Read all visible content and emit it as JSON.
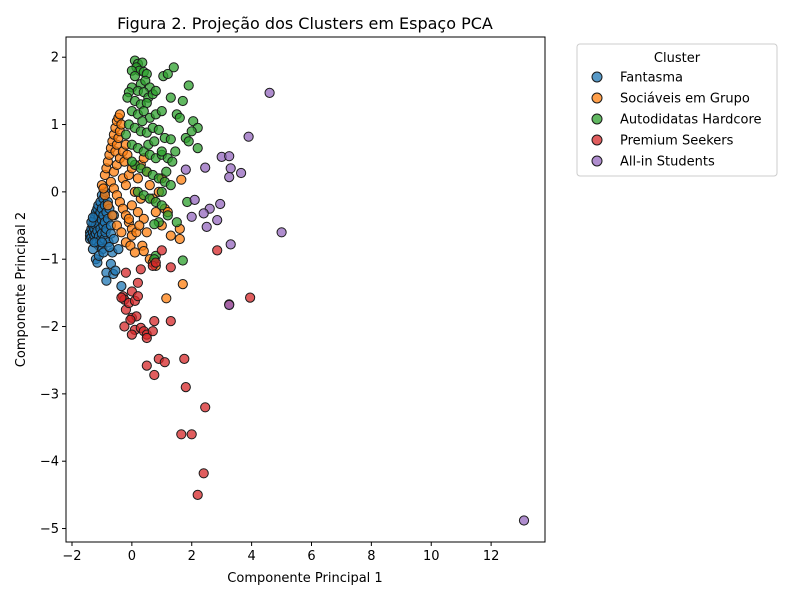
{
  "chart_data": {
    "type": "scatter",
    "title": "Figura 2. Projeção dos Clusters em Espaço PCA",
    "xlabel": "Componente Principal 1",
    "ylabel": "Componente Principal 2",
    "xlim": [
      -2.2,
      13.8
    ],
    "ylim": [
      -5.2,
      2.3
    ],
    "xticks": [
      -2,
      0,
      2,
      4,
      6,
      8,
      10,
      12
    ],
    "yticks": [
      -5,
      -4,
      -3,
      -2,
      -1,
      0,
      1,
      2
    ],
    "xtick_labels": [
      "−2",
      "0",
      "2",
      "4",
      "6",
      "8",
      "10",
      "12"
    ],
    "ytick_labels": [
      "−5",
      "−4",
      "−3",
      "−2",
      "−1",
      "0",
      "1",
      "2"
    ],
    "grid": false,
    "legend": {
      "title": "Cluster",
      "placement": "outside-top-right"
    },
    "series": [
      {
        "name": "Fantasma",
        "color": "#1f77b4",
        "points": [
          [
            -1.4,
            -0.6
          ],
          [
            -1.4,
            -0.65
          ],
          [
            -1.4,
            -0.7
          ],
          [
            -1.35,
            -0.55
          ],
          [
            -1.35,
            -0.68
          ],
          [
            -1.3,
            -0.5
          ],
          [
            -1.3,
            -0.6
          ],
          [
            -1.3,
            -0.72
          ],
          [
            -1.28,
            -0.45
          ],
          [
            -1.25,
            -0.4
          ],
          [
            -1.25,
            -0.55
          ],
          [
            -1.25,
            -0.65
          ],
          [
            -1.22,
            -0.35
          ],
          [
            -1.2,
            -0.3
          ],
          [
            -1.2,
            -0.5
          ],
          [
            -1.2,
            -0.62
          ],
          [
            -1.18,
            -0.75
          ],
          [
            -1.15,
            -0.25
          ],
          [
            -1.15,
            -0.42
          ],
          [
            -1.15,
            -0.58
          ],
          [
            -1.12,
            -0.2
          ],
          [
            -1.1,
            -0.35
          ],
          [
            -1.1,
            -0.48
          ],
          [
            -1.1,
            -0.66
          ],
          [
            -1.1,
            -0.8
          ],
          [
            -1.05,
            -0.15
          ],
          [
            -1.05,
            -0.3
          ],
          [
            -1.05,
            -0.55
          ],
          [
            -1.05,
            -0.72
          ],
          [
            -1.0,
            -0.05
          ],
          [
            -1.0,
            -0.25
          ],
          [
            -1.0,
            -0.42
          ],
          [
            -1.0,
            -0.62
          ],
          [
            -0.98,
            -0.85
          ],
          [
            -0.95,
            -0.1
          ],
          [
            -0.95,
            -0.35
          ],
          [
            -0.95,
            -0.5
          ],
          [
            -0.92,
            -0.7
          ],
          [
            -0.9,
            0.0
          ],
          [
            -0.9,
            -0.2
          ],
          [
            -0.9,
            -0.45
          ],
          [
            -0.88,
            -0.6
          ],
          [
            -0.85,
            -0.3
          ],
          [
            -0.85,
            -0.55
          ],
          [
            -0.8,
            -0.15
          ],
          [
            -0.8,
            -0.4
          ],
          [
            -0.78,
            -0.75
          ],
          [
            -0.75,
            -0.25
          ],
          [
            -0.7,
            -0.5
          ],
          [
            -0.7,
            -0.62
          ],
          [
            -0.65,
            -0.9
          ],
          [
            -0.6,
            -0.35
          ],
          [
            -1.2,
            -1.0
          ],
          [
            -1.15,
            -1.05
          ],
          [
            -1.1,
            -0.95
          ],
          [
            -1.3,
            -0.85
          ],
          [
            -1.25,
            -0.75
          ],
          [
            -0.85,
            -1.2
          ],
          [
            -0.85,
            -1.32
          ],
          [
            -0.7,
            -1.07
          ],
          [
            -0.62,
            -1.22
          ],
          [
            -0.55,
            -1.17
          ],
          [
            -0.45,
            -0.85
          ],
          [
            -0.35,
            -1.4
          ],
          [
            -1.35,
            -0.45
          ],
          [
            -1.3,
            -0.38
          ],
          [
            -1.0,
            -0.75
          ],
          [
            -0.95,
            -0.9
          ],
          [
            -0.75,
            -0.82
          ],
          [
            -0.6,
            -0.7
          ]
        ]
      },
      {
        "name": "Sociáveis em Grupo",
        "color": "#ff7f0e",
        "points": [
          [
            -1.0,
            0.1
          ],
          [
            -0.9,
            0.25
          ],
          [
            -0.85,
            0.35
          ],
          [
            -0.8,
            0.45
          ],
          [
            -0.75,
            0.55
          ],
          [
            -0.7,
            0.65
          ],
          [
            -0.65,
            0.75
          ],
          [
            -0.6,
            0.85
          ],
          [
            -0.55,
            0.95
          ],
          [
            -0.5,
            1.05
          ],
          [
            -0.45,
            1.1
          ],
          [
            -0.4,
            1.15
          ],
          [
            -0.55,
            0.6
          ],
          [
            -0.5,
            0.7
          ],
          [
            -0.45,
            0.8
          ],
          [
            -0.4,
            0.9
          ],
          [
            -0.35,
            1.0
          ],
          [
            -0.6,
            0.3
          ],
          [
            -0.5,
            0.4
          ],
          [
            -0.4,
            0.5
          ],
          [
            -0.3,
            0.6
          ],
          [
            -0.2,
            0.7
          ],
          [
            -0.7,
            0.15
          ],
          [
            -0.6,
            0.05
          ],
          [
            -0.5,
            -0.05
          ],
          [
            -0.4,
            -0.15
          ],
          [
            -0.3,
            -0.25
          ],
          [
            -0.2,
            -0.35
          ],
          [
            -0.1,
            -0.45
          ],
          [
            0.0,
            -0.55
          ],
          [
            -0.8,
            -0.2
          ],
          [
            -0.65,
            -0.35
          ],
          [
            -0.5,
            -0.5
          ],
          [
            -0.35,
            -0.6
          ],
          [
            -0.2,
            -0.75
          ],
          [
            -0.1,
            -0.4
          ],
          [
            0.0,
            -0.2
          ],
          [
            0.1,
            0.0
          ],
          [
            0.2,
            0.2
          ],
          [
            0.3,
            0.4
          ],
          [
            0.4,
            0.5
          ],
          [
            0.5,
            0.3
          ],
          [
            0.6,
            0.1
          ],
          [
            0.7,
            -0.1
          ],
          [
            0.8,
            -0.3
          ],
          [
            0.3,
            -0.1
          ],
          [
            0.4,
            -0.4
          ],
          [
            0.5,
            -0.6
          ],
          [
            0.35,
            -0.8
          ],
          [
            0.4,
            -0.88
          ],
          [
            0.0,
            -0.65
          ],
          [
            -0.05,
            -0.8
          ],
          [
            0.1,
            -0.9
          ],
          [
            0.6,
            -1.0
          ],
          [
            0.7,
            -1.05
          ],
          [
            0.8,
            -1.1
          ],
          [
            1.0,
            -0.5
          ],
          [
            1.1,
            -0.25
          ],
          [
            1.2,
            -0.3
          ],
          [
            1.3,
            -0.65
          ],
          [
            1.6,
            -0.7
          ],
          [
            1.6,
            -0.55
          ],
          [
            1.65,
            0.18
          ],
          [
            1.15,
            -1.58
          ],
          [
            1.7,
            -1.37
          ],
          [
            -0.3,
            0.2
          ],
          [
            -0.2,
            0.1
          ],
          [
            -0.1,
            0.25
          ],
          [
            0.0,
            0.35
          ],
          [
            -0.25,
            0.45
          ],
          [
            -0.15,
            0.55
          ],
          [
            0.15,
            -0.6
          ],
          [
            0.25,
            -0.5
          ],
          [
            -0.9,
            -0.05
          ],
          [
            -0.95,
            0.05
          ],
          [
            0.2,
            -0.3
          ],
          [
            0.9,
            0.0
          ],
          [
            1.0,
            0.2
          ]
        ]
      },
      {
        "name": "Autodidatas Hardcore",
        "color": "#2ca02c",
        "points": [
          [
            0.1,
            1.95
          ],
          [
            0.2,
            1.9
          ],
          [
            0.35,
            1.92
          ],
          [
            0.15,
            1.85
          ],
          [
            0.25,
            1.8
          ],
          [
            0.4,
            1.78
          ],
          [
            0.5,
            1.75
          ],
          [
            0.0,
            1.8
          ],
          [
            0.1,
            1.72
          ],
          [
            1.05,
            1.72
          ],
          [
            1.2,
            1.75
          ],
          [
            1.4,
            1.85
          ],
          [
            1.9,
            1.58
          ],
          [
            0.3,
            1.6
          ],
          [
            0.45,
            1.65
          ],
          [
            0.6,
            1.55
          ],
          [
            0.0,
            1.55
          ],
          [
            0.2,
            1.5
          ],
          [
            0.4,
            1.48
          ],
          [
            0.55,
            1.4
          ],
          [
            0.7,
            1.45
          ],
          [
            -0.1,
            1.48
          ],
          [
            -0.15,
            1.4
          ],
          [
            0.1,
            1.35
          ],
          [
            0.3,
            1.3
          ],
          [
            0.5,
            1.32
          ],
          [
            0.8,
            1.5
          ],
          [
            1.3,
            1.4
          ],
          [
            1.7,
            1.35
          ],
          [
            0.0,
            1.2
          ],
          [
            0.2,
            1.15
          ],
          [
            0.4,
            1.2
          ],
          [
            0.6,
            1.1
          ],
          [
            0.8,
            1.15
          ],
          [
            1.0,
            1.2
          ],
          [
            1.5,
            1.15
          ],
          [
            1.6,
            1.1
          ],
          [
            2.05,
            1.05
          ],
          [
            2.2,
            0.95
          ],
          [
            -0.1,
            1.0
          ],
          [
            0.1,
            0.95
          ],
          [
            0.3,
            0.9
          ],
          [
            0.5,
            0.88
          ],
          [
            0.7,
            0.95
          ],
          [
            0.9,
            0.92
          ],
          [
            1.1,
            0.8
          ],
          [
            1.3,
            0.78
          ],
          [
            1.8,
            0.8
          ],
          [
            1.9,
            0.75
          ],
          [
            2.0,
            0.9
          ],
          [
            2.2,
            0.65
          ],
          [
            0.0,
            0.7
          ],
          [
            0.2,
            0.65
          ],
          [
            0.4,
            0.6
          ],
          [
            0.6,
            0.55
          ],
          [
            0.8,
            0.5
          ],
          [
            1.0,
            0.55
          ],
          [
            1.2,
            0.5
          ],
          [
            1.35,
            0.45
          ],
          [
            0.1,
            0.4
          ],
          [
            0.3,
            0.35
          ],
          [
            0.5,
            0.3
          ],
          [
            0.7,
            0.25
          ],
          [
            0.9,
            0.2
          ],
          [
            1.1,
            0.15
          ],
          [
            1.3,
            0.1
          ],
          [
            0.2,
            0.0
          ],
          [
            0.4,
            -0.05
          ],
          [
            0.6,
            -0.1
          ],
          [
            0.8,
            -0.15
          ],
          [
            1.0,
            -0.2
          ],
          [
            1.2,
            -0.35
          ],
          [
            1.5,
            -0.45
          ],
          [
            1.85,
            -0.15
          ],
          [
            0.9,
            -0.45
          ],
          [
            0.75,
            -0.48
          ],
          [
            0.8,
            -0.95
          ],
          [
            0.75,
            -1.0
          ],
          [
            1.7,
            -1.02
          ],
          [
            1.0,
            0.6
          ],
          [
            1.15,
            0.3
          ],
          [
            0.55,
            0.7
          ],
          [
            -0.2,
            0.85
          ],
          [
            0.0,
            0.45
          ],
          [
            0.35,
            1.05
          ],
          [
            0.75,
            0.75
          ],
          [
            1.45,
            0.6
          ],
          [
            1.0,
            0.0
          ]
        ]
      },
      {
        "name": "Premium Seekers",
        "color": "#d62728",
        "points": [
          [
            -0.3,
            -1.55
          ],
          [
            -0.25,
            -1.6
          ],
          [
            -0.2,
            -1.75
          ],
          [
            -0.1,
            -1.65
          ],
          [
            0.0,
            -1.48
          ],
          [
            0.1,
            -1.62
          ],
          [
            0.2,
            -1.35
          ],
          [
            -0.2,
            -1.2
          ],
          [
            0.3,
            -1.15
          ],
          [
            0.7,
            -1.1
          ],
          [
            0.8,
            -1.05
          ],
          [
            1.3,
            -1.12
          ],
          [
            1.0,
            -0.87
          ],
          [
            2.85,
            -0.87
          ],
          [
            3.95,
            -1.57
          ],
          [
            -0.25,
            -2.0
          ],
          [
            0.0,
            -1.87
          ],
          [
            0.15,
            -1.85
          ],
          [
            -0.05,
            -1.9
          ],
          [
            0.1,
            -2.05
          ],
          [
            0.3,
            -2.02
          ],
          [
            0.4,
            -2.07
          ],
          [
            0.5,
            -2.12
          ],
          [
            0.7,
            -2.07
          ],
          [
            0.75,
            -1.92
          ],
          [
            1.3,
            -1.92
          ],
          [
            0.0,
            -2.12
          ],
          [
            0.5,
            -2.17
          ],
          [
            0.5,
            -2.58
          ],
          [
            0.75,
            -2.72
          ],
          [
            0.9,
            -2.48
          ],
          [
            1.1,
            -2.53
          ],
          [
            1.75,
            -2.48
          ],
          [
            1.8,
            -2.9
          ],
          [
            2.45,
            -3.2
          ],
          [
            1.65,
            -3.6
          ],
          [
            2.0,
            -3.6
          ],
          [
            2.4,
            -4.18
          ],
          [
            2.2,
            -4.5
          ],
          [
            3.25,
            -1.67
          ],
          [
            -0.35,
            -1.57
          ],
          [
            0.2,
            -1.55
          ]
        ]
      },
      {
        "name": "All-in Students",
        "color": "#9467bd",
        "points": [
          [
            4.6,
            1.47
          ],
          [
            3.9,
            0.82
          ],
          [
            3.0,
            0.52
          ],
          [
            3.25,
            0.53
          ],
          [
            3.3,
            0.35
          ],
          [
            3.25,
            0.22
          ],
          [
            3.65,
            0.28
          ],
          [
            1.8,
            0.33
          ],
          [
            2.45,
            0.36
          ],
          [
            2.1,
            -0.12
          ],
          [
            2.6,
            -0.25
          ],
          [
            2.95,
            -0.18
          ],
          [
            2.4,
            -0.32
          ],
          [
            2.0,
            -0.37
          ],
          [
            2.85,
            -0.42
          ],
          [
            2.5,
            -0.52
          ],
          [
            3.3,
            -0.78
          ],
          [
            5.0,
            -0.6
          ],
          [
            3.25,
            -1.68
          ],
          [
            13.1,
            -4.88
          ]
        ]
      }
    ]
  }
}
